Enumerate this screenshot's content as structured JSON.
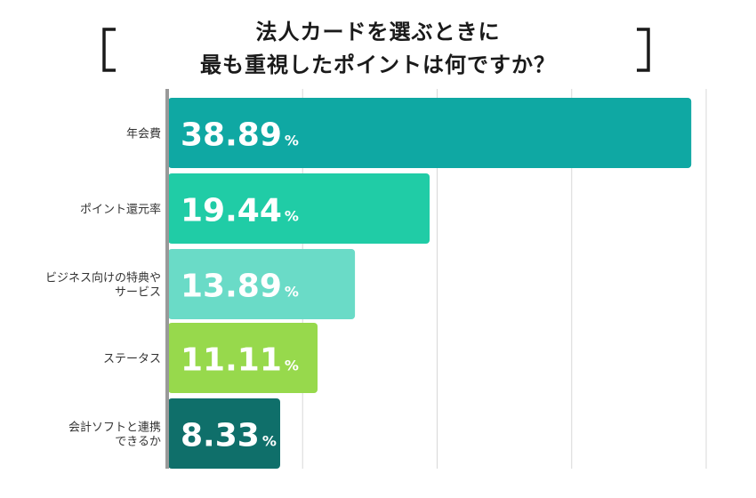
{
  "chart_data": {
    "type": "bar",
    "orientation": "horizontal",
    "title_lines": [
      "法人カードを選ぶときに",
      "最も重視したポイントは何ですか？"
    ],
    "categories": [
      [
        "年会費"
      ],
      [
        "ポイント還元率"
      ],
      [
        "ビジネス向けの特典や",
        "サービス"
      ],
      [
        "ステータス"
      ],
      [
        "会計ソフトと連携",
        "できるか"
      ]
    ],
    "values": [
      38.89,
      19.44,
      13.89,
      11.11,
      8.33
    ],
    "value_labels": [
      "38.89",
      "19.44",
      "13.89",
      "11.11",
      "8.33"
    ],
    "unit": "%",
    "xlim": [
      0,
      40
    ],
    "grid": true,
    "legend": "none"
  },
  "colors": {
    "bars": [
      "#0fa8a3",
      "#20cca6",
      "#6adbc7",
      "#97d94c",
      "#0f6f6a"
    ],
    "grid": "#d8d8d8",
    "axis": "#999999",
    "label_text": "#333333",
    "value_text": "#ffffff",
    "title_text": "#1a1a1a"
  }
}
